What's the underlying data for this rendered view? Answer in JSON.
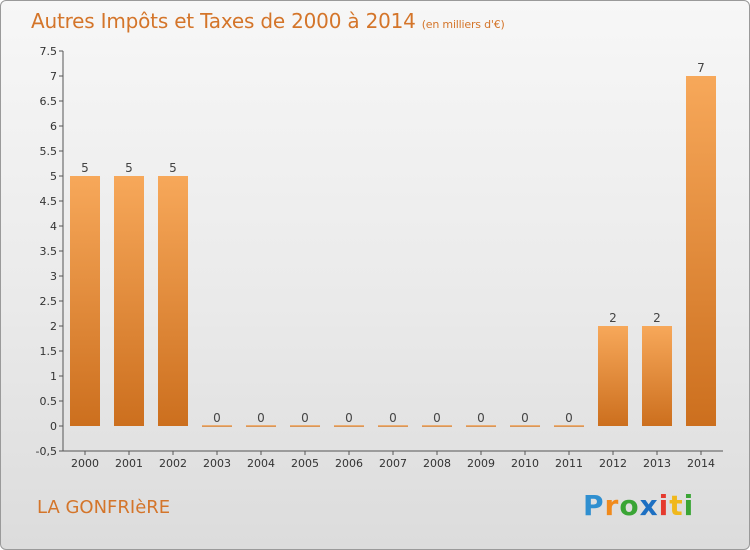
{
  "chart_data": {
    "type": "bar",
    "title": "Autres Impôts et Taxes de 2000 à 2014",
    "subtitle": "(en milliers d'€)",
    "categories": [
      "2000",
      "2001",
      "2002",
      "2003",
      "2004",
      "2005",
      "2006",
      "2007",
      "2008",
      "2009",
      "2010",
      "2011",
      "2012",
      "2013",
      "2014"
    ],
    "values": [
      5,
      5,
      5,
      0,
      0,
      0,
      0,
      0,
      0,
      0,
      0,
      0,
      2,
      2,
      7
    ],
    "data_labels": [
      "5",
      "5",
      "5",
      "0",
      "0",
      "0",
      "0",
      "0",
      "0",
      "0",
      "0",
      "0",
      "2",
      "2",
      "7"
    ],
    "ylim": [
      -0.5,
      7.5
    ],
    "yticks": [
      "-0,5",
      "0",
      "0.5",
      "1",
      "1.5",
      "2",
      "2.5",
      "3",
      "3.5",
      "4",
      "4.5",
      "5",
      "5.5",
      "6",
      "6.5",
      "7",
      "7.5"
    ],
    "ytick_values": [
      -0.5,
      0,
      0.5,
      1,
      1.5,
      2,
      2.5,
      3,
      3.5,
      4,
      4.5,
      5,
      5.5,
      6,
      6.5,
      7,
      7.5
    ],
    "grid": false,
    "colors": {
      "bar_light": "#f7a85a",
      "bar_dark": "#cc6f1e",
      "text": "#d4752a",
      "axis": "#555555"
    }
  },
  "commune": "LA GONFRIèRE",
  "logo": {
    "text": "Proxiti",
    "letters": [
      "P",
      "r",
      "o",
      "x",
      "i",
      "t",
      "i"
    ],
    "colors": [
      "#2f8fd0",
      "#f08a1c",
      "#3aa535",
      "#1d6fc2",
      "#e53a2e",
      "#f0b81c",
      "#3aa535"
    ]
  }
}
